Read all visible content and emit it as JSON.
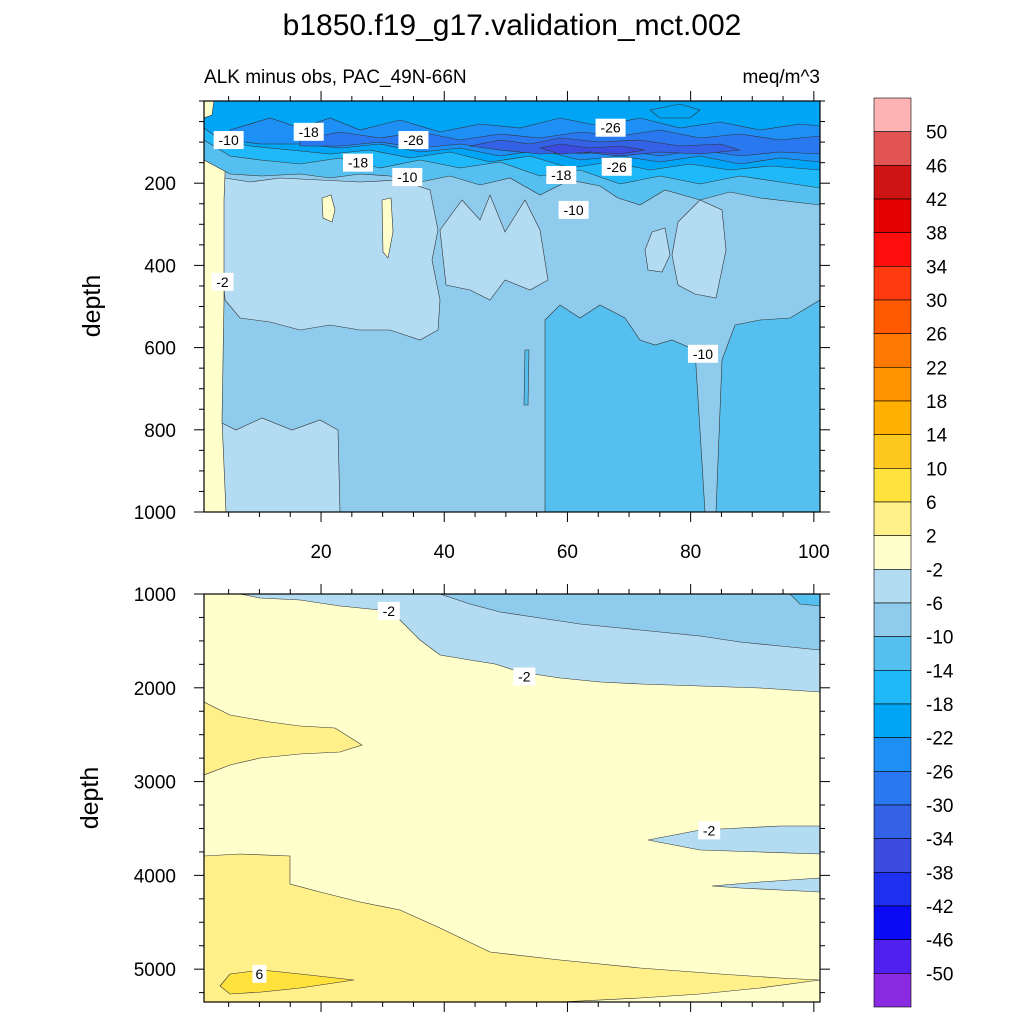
{
  "chart_data": {
    "type": "heatmap",
    "title": "b1850.f19_g17.validation_mct.002",
    "subtitle_left": "ALK minus obs, PAC_49N-66N",
    "subtitle_right": "meq/m^3",
    "xlabel": "",
    "ylabel": "depth",
    "x_range": [
      1,
      101
    ],
    "x_ticks": [
      "20",
      "40",
      "60",
      "80",
      "100"
    ],
    "x_tick_values": [
      20,
      40,
      60,
      80,
      100
    ],
    "panels": [
      {
        "name": "upper",
        "ylim": [
          0,
          1000
        ],
        "y_ticks": [
          "200",
          "400",
          "600",
          "800",
          "1000"
        ],
        "y_tick_values": [
          200,
          400,
          600,
          800,
          1000
        ],
        "contour_labels": [
          {
            "text": "-10",
            "x": 5,
            "y": 95
          },
          {
            "text": "-18",
            "x": 18,
            "y": 75
          },
          {
            "text": "-26",
            "x": 35,
            "y": 95
          },
          {
            "text": "-26",
            "x": 67,
            "y": 65
          },
          {
            "text": "-18",
            "x": 26,
            "y": 150
          },
          {
            "text": "-10",
            "x": 34,
            "y": 185
          },
          {
            "text": "-26",
            "x": 68,
            "y": 160
          },
          {
            "text": "-18",
            "x": 59,
            "y": 180
          },
          {
            "text": "-10",
            "x": 61,
            "y": 265
          },
          {
            "text": "-2",
            "x": 4,
            "y": 440
          },
          {
            "text": "-10",
            "x": 82,
            "y": 615
          }
        ]
      },
      {
        "name": "lower",
        "ylim": [
          1000,
          5350
        ],
        "y_ticks": [
          "1000",
          "2000",
          "3000",
          "4000",
          "5000"
        ],
        "y_tick_values": [
          1000,
          2000,
          3000,
          4000,
          5000
        ],
        "contour_labels": [
          {
            "text": "-2",
            "x": 31,
            "y": 1180
          },
          {
            "text": "-2",
            "x": 53,
            "y": 1880
          },
          {
            "text": "-2",
            "x": 83,
            "y": 3520
          },
          {
            "text": "6",
            "x": 10,
            "y": 5050
          }
        ]
      }
    ],
    "colorbar": {
      "labels": [
        "50",
        "46",
        "42",
        "38",
        "34",
        "30",
        "26",
        "22",
        "18",
        "14",
        "10",
        "6",
        "2",
        "-2",
        "-6",
        "-10",
        "-14",
        "-18",
        "-22",
        "-26",
        "-30",
        "-34",
        "-38",
        "-42",
        "-46",
        "-50"
      ],
      "colors": [
        "#fdb3b3",
        "#e25454",
        "#ce1414",
        "#e30000",
        "#ff0e0e",
        "#ff3a0e",
        "#ff5a00",
        "#ff7800",
        "#ff9400",
        "#ffb000",
        "#ffc81e",
        "#ffe23c",
        "#fff08a",
        "#ffffcc",
        "#b3dcf3",
        "#8fcbec",
        "#55c0f0",
        "#1fb8f8",
        "#00a6f5",
        "#1e8ff5",
        "#2a78ef",
        "#3462e6",
        "#3c4ce0",
        "#1e2ff0",
        "#0a0af5",
        "#5020f0",
        "#8a2be2"
      ]
    },
    "palette": {
      "pos2": "#fff08a",
      "pos6": "#ffe23c",
      "near0": "#ffffcc",
      "neg2": "#b3dcf3",
      "neg6": "#8fcbec",
      "neg10": "#55c0f0",
      "neg14": "#1fb8f8",
      "neg18": "#00a6f5",
      "neg22": "#1e8ff5",
      "neg26": "#2a78ef",
      "neg30": "#3462e6",
      "neg34": "#3c4ce0"
    }
  }
}
